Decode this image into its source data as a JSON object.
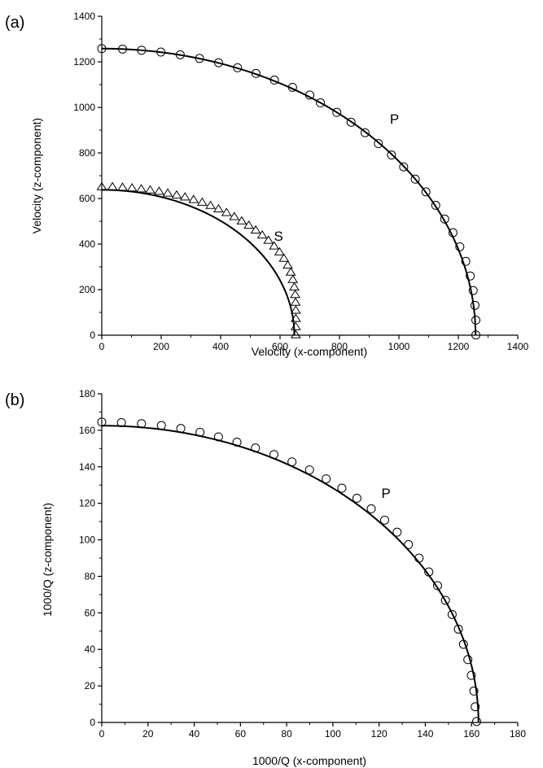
{
  "chart_data": [
    {
      "type": "scatter",
      "panel_label": "(a)",
      "xlabel": "Velocity (x-component)",
      "ylabel": "Velocity (z-component)",
      "xlim": [
        0,
        1400
      ],
      "ylim": [
        0,
        1400
      ],
      "xticks": [
        "0",
        "200",
        "400",
        "600",
        "800",
        "1000",
        "1200",
        "1400"
      ],
      "yticks": [
        "0",
        "200",
        "400",
        "600",
        "800",
        "1000",
        "1200",
        "1400"
      ],
      "grid": false,
      "series": [
        {
          "name": "P",
          "marker": "circle",
          "curve": {
            "x_radius": 1258,
            "z_radius": 1258
          },
          "points": [
            [
              0,
              1258
            ],
            [
              70,
              1256
            ],
            [
              134,
              1251
            ],
            [
              199,
              1243
            ],
            [
              264,
              1231
            ],
            [
              329,
              1215
            ],
            [
              393,
              1196
            ],
            [
              457,
              1174
            ],
            [
              519,
              1149
            ],
            [
              581,
              1120
            ],
            [
              642,
              1088
            ],
            [
              700,
              1054
            ],
            [
              736,
              1020
            ],
            [
              791,
              978
            ],
            [
              839,
              935
            ],
            [
              886,
              889
            ],
            [
              931,
              841
            ],
            [
              975,
              791
            ],
            [
              1016,
              739
            ],
            [
              1055,
              685
            ],
            [
              1091,
              629
            ],
            [
              1124,
              570
            ],
            [
              1154,
              510
            ],
            [
              1182,
              450
            ],
            [
              1205,
              388
            ],
            [
              1225,
              324
            ],
            [
              1240,
              260
            ],
            [
              1250,
              196
            ],
            [
              1256,
              131
            ],
            [
              1259,
              66
            ],
            [
              1259,
              1
            ]
          ]
        },
        {
          "name": "S",
          "marker": "triangle",
          "curve": {
            "x_radius": 648,
            "z_radius": 638
          },
          "points": [
            [
              0,
              650
            ],
            [
              36,
              650
            ],
            [
              70,
              648
            ],
            [
              102,
              645
            ],
            [
              133,
              641
            ],
            [
              163,
              636
            ],
            [
              193,
              630
            ],
            [
              222,
              622
            ],
            [
              252,
              614
            ],
            [
              280,
              605
            ],
            [
              309,
              594
            ],
            [
              338,
              582
            ],
            [
              366,
              568
            ],
            [
              393,
              553
            ],
            [
              420,
              537
            ],
            [
              446,
              519
            ],
            [
              471,
              500
            ],
            [
              495,
              481
            ],
            [
              518,
              460
            ],
            [
              540,
              438
            ],
            [
              561,
              415
            ],
            [
              580,
              390
            ],
            [
              598,
              364
            ],
            [
              613,
              336
            ],
            [
              626,
              306
            ],
            [
              636,
              275
            ],
            [
              643,
              243
            ],
            [
              648,
              210
            ],
            [
              651,
              177
            ],
            [
              652,
              143
            ],
            [
              653,
              108
            ],
            [
              653,
              72
            ],
            [
              653,
              36
            ],
            [
              653,
              0
            ]
          ]
        }
      ],
      "annotations": [
        {
          "text": "P",
          "x": 985,
          "y": 928
        },
        {
          "text": "S",
          "x": 595,
          "y": 415
        }
      ]
    },
    {
      "type": "scatter",
      "panel_label": "(b)",
      "xlabel": "1000/Q (x-component)",
      "ylabel": "1000/Q (z-component)",
      "xlim": [
        0,
        180
      ],
      "ylim": [
        0,
        180
      ],
      "xticks": [
        "0",
        "20",
        "40",
        "60",
        "80",
        "100",
        "120",
        "140",
        "160",
        "180"
      ],
      "yticks": [
        "0",
        "20",
        "40",
        "60",
        "80",
        "100",
        "120",
        "140",
        "160",
        "180"
      ],
      "grid": false,
      "series": [
        {
          "name": "P",
          "marker": "circle",
          "curve": {
            "x_radius": 163,
            "z_radius": 162.5
          },
          "points": [
            [
              0,
              164.5
            ],
            [
              8.5,
              164.2
            ],
            [
              17.2,
              163.6
            ],
            [
              25.8,
              162.6
            ],
            [
              34.2,
              161.0
            ],
            [
              42.5,
              158.9
            ],
            [
              50.5,
              156.4
            ],
            [
              58.5,
              153.5
            ],
            [
              66.5,
              150.3
            ],
            [
              74.5,
              146.7
            ],
            [
              82.3,
              142.7
            ],
            [
              89.9,
              138.3
            ],
            [
              97.1,
              133.4
            ],
            [
              103.9,
              128.3
            ],
            [
              110.4,
              122.8
            ],
            [
              116.6,
              117.0
            ],
            [
              122.4,
              110.8
            ],
            [
              127.8,
              104.2
            ],
            [
              132.7,
              97.4
            ],
            [
              137.3,
              90.0
            ],
            [
              141.5,
              82.4
            ],
            [
              145.3,
              74.9
            ],
            [
              148.7,
              66.9
            ],
            [
              151.6,
              59.1
            ],
            [
              154.3,
              51.1
            ],
            [
              156.5,
              42.8
            ],
            [
              158.4,
              34.4
            ],
            [
              159.9,
              25.8
            ],
            [
              161.0,
              17.2
            ],
            [
              161.6,
              8.6
            ],
            [
              162.2,
              0.5
            ]
          ]
        }
      ],
      "annotations": [
        {
          "text": "P",
          "x": 123,
          "y": 123
        }
      ]
    }
  ]
}
